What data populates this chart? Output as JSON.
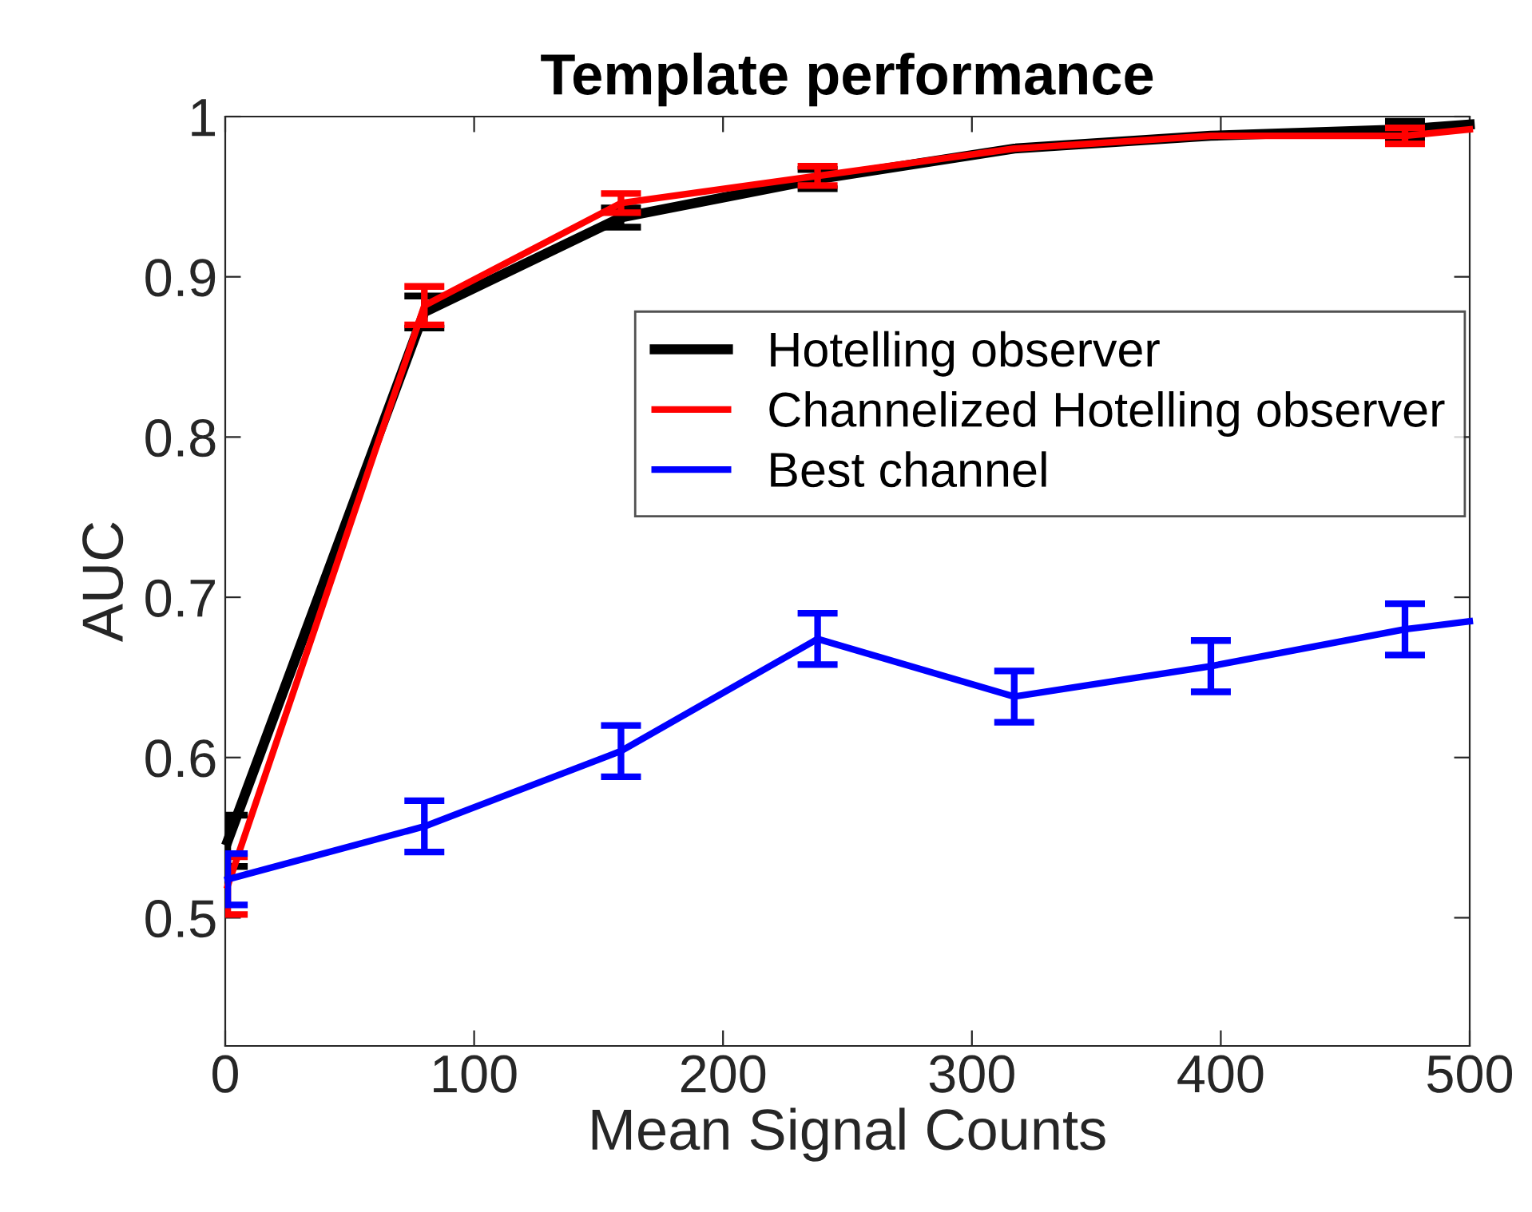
{
  "chart_data": {
    "type": "line",
    "title": "Template performance",
    "xlabel": "Mean Signal Counts",
    "ylabel": "AUC",
    "xlim": [
      0,
      500
    ],
    "xticks": [
      0,
      100,
      200,
      300,
      400,
      500
    ],
    "ylim": [
      0.42,
      1
    ],
    "yticks": [
      0.5,
      0.6,
      0.7,
      0.8,
      0.9,
      1
    ],
    "x": [
      1,
      80,
      159,
      238,
      317,
      396,
      474,
      500
    ],
    "series": [
      {
        "name": "Hotelling observer",
        "color": "#000000",
        "values": [
          0.548,
          0.878,
          0.937,
          0.961,
          0.98,
          0.988,
          0.992,
          0.995
        ],
        "errors": [
          0.016,
          0.01,
          0.006,
          0.006,
          null,
          null,
          0.005,
          null
        ]
      },
      {
        "name": "Channelized Hotelling observer",
        "color": "#ff0000",
        "values": [
          0.52,
          0.882,
          0.946,
          0.963,
          0.98,
          0.988,
          0.988,
          0.992
        ],
        "errors": [
          0.018,
          0.012,
          0.006,
          0.006,
          null,
          null,
          0.005,
          null
        ]
      },
      {
        "name": "Best channel",
        "color": "#0000ff",
        "values": [
          0.524,
          0.557,
          0.604,
          0.674,
          0.638,
          0.657,
          0.68,
          0.685
        ],
        "errors": [
          0.016,
          0.016,
          0.016,
          0.016,
          0.016,
          0.016,
          0.016,
          null
        ]
      }
    ],
    "legend": "right",
    "grid": false
  }
}
